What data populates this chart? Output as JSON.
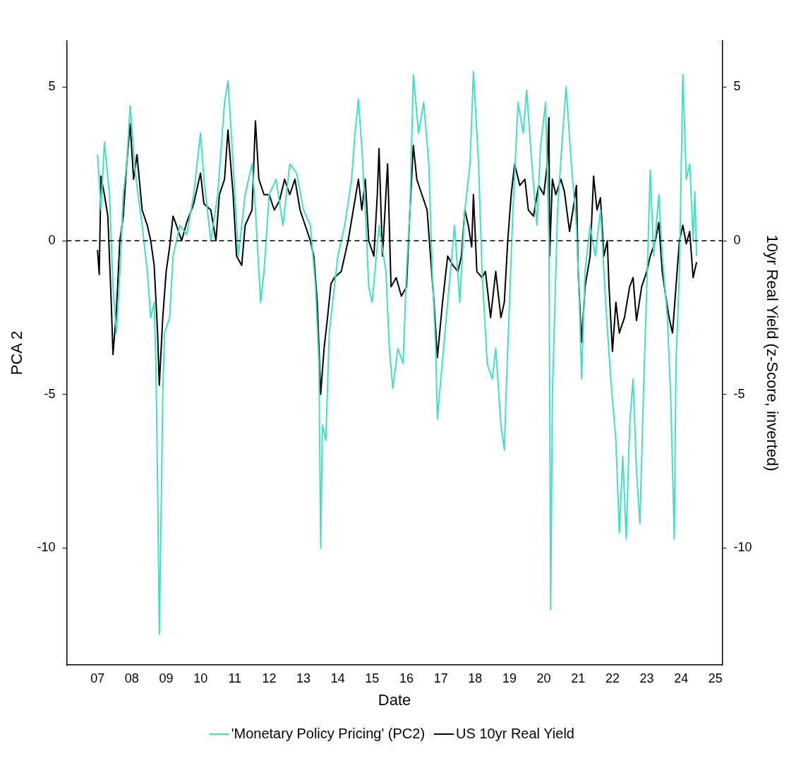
{
  "chart_data": {
    "type": "line",
    "xlabel": "Date",
    "ylabel": "PCA 2",
    "y2label": "10yr Real Yield (z-Score, inverted)",
    "xlim": [
      2006.1,
      2025.2
    ],
    "xticks": [
      {
        "value": 2007,
        "label": "07"
      },
      {
        "value": 2008,
        "label": "08"
      },
      {
        "value": 2009,
        "label": "09"
      },
      {
        "value": 2010,
        "label": "10"
      },
      {
        "value": 2011,
        "label": "11"
      },
      {
        "value": 2012,
        "label": "12"
      },
      {
        "value": 2013,
        "label": "13"
      },
      {
        "value": 2014,
        "label": "14"
      },
      {
        "value": 2015,
        "label": "15"
      },
      {
        "value": 2016,
        "label": "16"
      },
      {
        "value": 2017,
        "label": "17"
      },
      {
        "value": 2018,
        "label": "18"
      },
      {
        "value": 2019,
        "label": "19"
      },
      {
        "value": 2020,
        "label": "20"
      },
      {
        "value": 2021,
        "label": "21"
      },
      {
        "value": 2022,
        "label": "22"
      },
      {
        "value": 2023,
        "label": "23"
      },
      {
        "value": 2024,
        "label": "24"
      },
      {
        "value": 2025,
        "label": "25"
      }
    ],
    "ylim": [
      -13.8,
      6.5
    ],
    "yticks": [
      -10,
      -5,
      0,
      5
    ],
    "y2lim": [
      -13.8,
      6.5
    ],
    "y2ticks": [
      -10,
      -5,
      0,
      5
    ],
    "grid": false,
    "legend": "bottom",
    "marker": "none",
    "line_style": "solid",
    "ref_lines": [
      {
        "axis": "y",
        "value": 0,
        "color": "#000000",
        "line_style": "dashed"
      }
    ],
    "series": [
      {
        "name": "'Monetary Policy Pricing' (PC2)",
        "color": "#40e0c8",
        "x": [
          2007.0,
          2007.1,
          2007.2,
          2007.35,
          2007.45,
          2007.55,
          2007.65,
          2007.75,
          2007.85,
          2007.95,
          2008.1,
          2008.3,
          2008.45,
          2008.55,
          2008.65,
          2008.7,
          2008.75,
          2008.8,
          2008.85,
          2008.9,
          2008.95,
          2009.1,
          2009.2,
          2009.4,
          2009.6,
          2009.8,
          2010.0,
          2010.1,
          2010.3,
          2010.5,
          2010.7,
          2010.8,
          2010.95,
          2011.1,
          2011.3,
          2011.5,
          2011.6,
          2011.75,
          2011.85,
          2012.0,
          2012.2,
          2012.4,
          2012.6,
          2012.8,
          2013.0,
          2013.2,
          2013.35,
          2013.45,
          2013.5,
          2013.55,
          2013.65,
          2013.75,
          2013.9,
          2014.0,
          2014.2,
          2014.4,
          2014.5,
          2014.6,
          2014.7,
          2014.8,
          2014.9,
          2015.0,
          2015.2,
          2015.4,
          2015.5,
          2015.6,
          2015.75,
          2015.9,
          2016.0,
          2016.1,
          2016.2,
          2016.35,
          2016.5,
          2016.65,
          2016.75,
          2016.85,
          2016.9,
          2017.0,
          2017.2,
          2017.4,
          2017.55,
          2017.7,
          2017.85,
          2017.95,
          2018.1,
          2018.2,
          2018.35,
          2018.5,
          2018.6,
          2018.75,
          2018.85,
          2018.9,
          2019.0,
          2019.1,
          2019.25,
          2019.4,
          2019.5,
          2019.65,
          2019.8,
          2019.9,
          2020.05,
          2020.15,
          2020.2,
          2020.25,
          2020.4,
          2020.55,
          2020.65,
          2020.8,
          2020.95,
          2021.05,
          2021.1,
          2021.2,
          2021.35,
          2021.5,
          2021.65,
          2021.8,
          2021.95,
          2022.1,
          2022.2,
          2022.3,
          2022.4,
          2022.5,
          2022.6,
          2022.7,
          2022.8,
          2022.9,
          2023.0,
          2023.1,
          2023.2,
          2023.35,
          2023.45,
          2023.6,
          2023.7,
          2023.8,
          2023.85,
          2023.95,
          2024.05,
          2024.15,
          2024.25,
          2024.35,
          2024.4,
          2024.45
        ],
        "values": [
          2.8,
          1.0,
          3.2,
          1.5,
          -1.5,
          -3.0,
          -1.0,
          1.5,
          2.5,
          4.4,
          2.2,
          0.5,
          -1.0,
          -2.5,
          -2.0,
          -4.0,
          -8.0,
          -12.8,
          -9.0,
          -5.0,
          -3.0,
          -2.5,
          -0.5,
          0.5,
          0.2,
          1.5,
          3.5,
          2.0,
          0.0,
          1.5,
          4.5,
          5.2,
          2.5,
          -0.5,
          1.5,
          2.5,
          1.0,
          -2.0,
          -1.0,
          1.5,
          2.0,
          0.5,
          2.5,
          2.2,
          1.0,
          0.5,
          -1.5,
          -4.0,
          -10.0,
          -6.0,
          -6.5,
          -3.0,
          -1.5,
          -0.5,
          0.5,
          2.0,
          3.5,
          4.6,
          3.0,
          1.0,
          -1.5,
          -2.0,
          0.5,
          -1.0,
          -3.5,
          -4.8,
          -3.5,
          -4.0,
          -1.0,
          1.0,
          5.4,
          3.5,
          4.5,
          2.5,
          -1.0,
          -3.5,
          -5.8,
          -4.5,
          -2.0,
          0.5,
          -2.0,
          1.0,
          2.5,
          5.5,
          2.5,
          -1.0,
          -4.0,
          -4.5,
          -3.5,
          -6.0,
          -6.8,
          -5.0,
          -2.0,
          1.0,
          4.5,
          3.5,
          4.9,
          2.5,
          0.5,
          3.0,
          4.5,
          0.0,
          -12.0,
          -5.0,
          1.0,
          3.5,
          5.0,
          2.5,
          0.5,
          -2.5,
          -4.5,
          -1.0,
          0.5,
          -0.5,
          1.0,
          -2.0,
          -4.5,
          -6.5,
          -9.5,
          -7.0,
          -9.7,
          -6.0,
          -4.5,
          -7.5,
          -9.2,
          -5.0,
          -1.5,
          2.3,
          -0.5,
          1.5,
          -0.5,
          -2.5,
          -5.2,
          -9.7,
          -4.0,
          -1.0,
          5.4,
          2.0,
          2.5,
          0.0,
          1.6,
          -0.5
        ]
      },
      {
        "name": "US 10yr Real Yield",
        "color": "#000000",
        "x": [
          2007.0,
          2007.05,
          2007.1,
          2007.2,
          2007.3,
          2007.4,
          2007.45,
          2007.55,
          2007.65,
          2007.75,
          2007.85,
          2007.95,
          2008.05,
          2008.15,
          2008.3,
          2008.45,
          2008.55,
          2008.65,
          2008.75,
          2008.8,
          2008.9,
          2009.0,
          2009.1,
          2009.2,
          2009.3,
          2009.45,
          2009.6,
          2009.8,
          2010.0,
          2010.1,
          2010.3,
          2010.45,
          2010.55,
          2010.7,
          2010.8,
          2010.95,
          2011.05,
          2011.2,
          2011.3,
          2011.5,
          2011.6,
          2011.7,
          2011.85,
          2012.0,
          2012.15,
          2012.3,
          2012.45,
          2012.6,
          2012.75,
          2012.9,
          2013.05,
          2013.2,
          2013.3,
          2013.4,
          2013.5,
          2013.6,
          2013.7,
          2013.8,
          2013.9,
          2014.1,
          2014.3,
          2014.45,
          2014.6,
          2014.7,
          2014.8,
          2014.9,
          2015.05,
          2015.15,
          2015.2,
          2015.3,
          2015.45,
          2015.55,
          2015.7,
          2015.85,
          2016.0,
          2016.1,
          2016.2,
          2016.3,
          2016.45,
          2016.6,
          2016.7,
          2016.8,
          2016.9,
          2017.05,
          2017.2,
          2017.35,
          2017.5,
          2017.6,
          2017.7,
          2017.8,
          2017.9,
          2017.95,
          2018.05,
          2018.2,
          2018.3,
          2018.45,
          2018.6,
          2018.65,
          2018.75,
          2018.85,
          2018.95,
          2019.05,
          2019.15,
          2019.3,
          2019.45,
          2019.55,
          2019.7,
          2019.85,
          2020.0,
          2020.1,
          2020.15,
          2020.17,
          2020.25,
          2020.35,
          2020.5,
          2020.6,
          2020.75,
          2020.85,
          2020.95,
          2021.0,
          2021.1,
          2021.2,
          2021.35,
          2021.45,
          2021.55,
          2021.65,
          2021.75,
          2021.85,
          2021.9,
          2022.0,
          2022.1,
          2022.2,
          2022.35,
          2022.5,
          2022.6,
          2022.7,
          2022.85,
          2023.0,
          2023.1,
          2023.25,
          2023.35,
          2023.45,
          2023.55,
          2023.65,
          2023.75,
          2023.85,
          2023.95,
          2024.05,
          2024.15,
          2024.25,
          2024.35,
          2024.45
        ],
        "values": [
          -0.3,
          -1.1,
          2.1,
          1.5,
          0.8,
          -2.0,
          -3.7,
          -2.3,
          0.0,
          0.8,
          2.5,
          3.8,
          2.0,
          2.8,
          1.0,
          0.5,
          0.0,
          -0.8,
          -3.0,
          -4.7,
          -2.5,
          -1.0,
          -0.2,
          0.8,
          0.5,
          0.0,
          0.6,
          1.2,
          2.2,
          1.2,
          1.0,
          0.0,
          1.5,
          2.0,
          3.6,
          1.5,
          -0.5,
          -0.8,
          0.5,
          1.0,
          3.9,
          2.0,
          1.5,
          1.5,
          1.0,
          1.3,
          2.0,
          1.5,
          2.0,
          1.0,
          0.5,
          0.0,
          -0.5,
          -2.0,
          -5.0,
          -3.5,
          -2.5,
          -1.4,
          -1.2,
          -1.0,
          0.0,
          1.0,
          2.0,
          1.0,
          2.0,
          0.0,
          -0.5,
          1.5,
          3.0,
          -0.5,
          2.5,
          -1.5,
          -1.2,
          -1.8,
          -1.5,
          1.0,
          3.1,
          2.0,
          1.5,
          1.0,
          -0.5,
          -2.0,
          -3.8,
          -2.0,
          -0.5,
          -0.8,
          -1.0,
          -0.5,
          1.0,
          0.5,
          -0.2,
          1.5,
          -1.0,
          -1.2,
          -1.0,
          -2.5,
          -1.0,
          -1.5,
          -2.5,
          -2.0,
          0.0,
          1.5,
          2.5,
          1.8,
          2.0,
          1.0,
          0.8,
          1.8,
          1.5,
          2.5,
          4.0,
          -0.5,
          2.0,
          1.5,
          2.0,
          1.6,
          0.3,
          1.0,
          1.8,
          -1.0,
          -3.3,
          -1.5,
          -0.5,
          2.1,
          1.0,
          1.4,
          -0.5,
          0.0,
          -1.5,
          -3.6,
          -2.0,
          -3.0,
          -2.5,
          -1.5,
          -1.2,
          -2.6,
          -1.5,
          -1.0,
          -0.5,
          0.0,
          0.6,
          -1.0,
          -1.8,
          -2.5,
          -3.0,
          -1.5,
          0.0,
          0.5,
          -0.1,
          0.3,
          -1.2,
          -0.7
        ]
      }
    ]
  }
}
